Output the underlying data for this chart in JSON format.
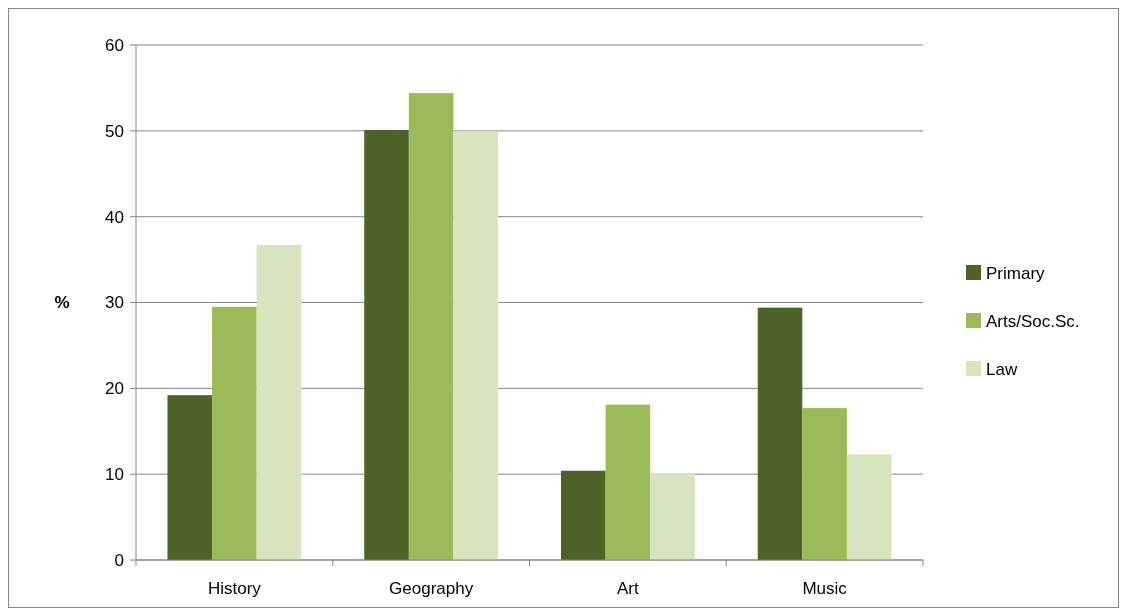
{
  "chart_data": {
    "type": "bar",
    "ylabel": "%",
    "categories": [
      "History",
      "Geography",
      "Art",
      "Music"
    ],
    "series": [
      {
        "name": "Primary",
        "color": "#4f6228",
        "values": [
          19.2,
          50.1,
          10.4,
          29.4
        ]
      },
      {
        "name": "Arts/Soc.Sc.",
        "color": "#9bbb59",
        "values": [
          29.5,
          54.4,
          18.1,
          17.7
        ]
      },
      {
        "name": "Law",
        "color": "#d7e4bd",
        "values": [
          36.7,
          50.0,
          10.1,
          12.3
        ]
      }
    ],
    "ylim": [
      0,
      60
    ],
    "yticks": [
      0,
      10,
      20,
      30,
      40,
      50,
      60
    ],
    "grid": "y",
    "legend": "right"
  }
}
